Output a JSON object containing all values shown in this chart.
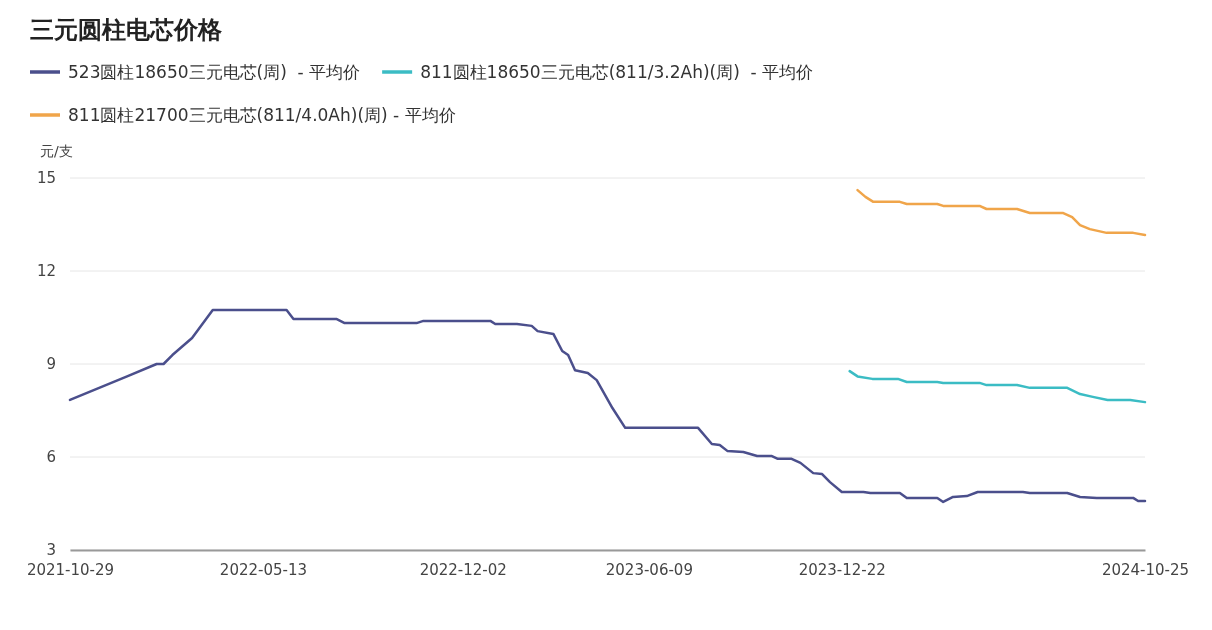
{
  "chart_data": {
    "type": "line",
    "title": "三元圆柱电芯价格",
    "ylabel": "元/支",
    "legend": "top left",
    "grid": "y",
    "marker": "none",
    "line_style": "solid",
    "xlim": [
      "2021-10-29",
      "2024-10-25"
    ],
    "xticks": [
      "2021-10-29",
      "2022-05-13",
      "2022-12-02",
      "2023-06-09",
      "2023-12-22",
      "2024-10-25"
    ],
    "ylim": [
      3,
      15
    ],
    "yticks": [
      3,
      6,
      9,
      12,
      15
    ],
    "series": [
      {
        "name": "523圆柱18650三元电芯(周)  - 平均价",
        "color": "#4b4f8c",
        "x": [
          "2021-10-29",
          "2021-12-26",
          "2022-01-25",
          "2022-02-01",
          "2022-02-10",
          "2022-03-02",
          "2022-03-23",
          "2022-06-06",
          "2022-06-13",
          "2022-07-27",
          "2022-08-04",
          "2022-10-16",
          "2022-10-23",
          "2022-12-30",
          "2023-01-04",
          "2023-01-26",
          "2023-02-10",
          "2023-02-16",
          "2023-03-04",
          "2023-03-13",
          "2023-03-19",
          "2023-03-26",
          "2023-04-08",
          "2023-04-17",
          "2023-05-03",
          "2023-05-16",
          "2023-07-29",
          "2023-08-12",
          "2023-08-20",
          "2023-08-28",
          "2023-09-13",
          "2023-09-27",
          "2023-10-12",
          "2023-10-18",
          "2023-11-01",
          "2023-11-10",
          "2023-11-23",
          "2023-12-02",
          "2023-12-10",
          "2023-12-22",
          "2024-01-13",
          "2024-01-20",
          "2024-02-19",
          "2024-02-26",
          "2024-03-28",
          "2024-04-03",
          "2024-04-13",
          "2024-04-27",
          "2024-05-08",
          "2024-06-23",
          "2024-06-30",
          "2024-08-07",
          "2024-08-20",
          "2024-09-06",
          "2024-10-13",
          "2024-10-18",
          "2024-10-25"
        ],
        "values": [
          7.84,
          8.6,
          9.0,
          9.0,
          9.29,
          9.84,
          10.74,
          10.74,
          10.45,
          10.45,
          10.32,
          10.32,
          10.39,
          10.39,
          10.29,
          10.29,
          10.23,
          10.06,
          9.97,
          9.42,
          9.29,
          8.8,
          8.71,
          8.48,
          7.58,
          6.94,
          6.94,
          6.42,
          6.39,
          6.19,
          6.16,
          6.03,
          6.03,
          5.94,
          5.94,
          5.81,
          5.48,
          5.45,
          5.19,
          4.87,
          4.87,
          4.84,
          4.84,
          4.68,
          4.68,
          4.55,
          4.71,
          4.74,
          4.87,
          4.87,
          4.84,
          4.84,
          4.71,
          4.68,
          4.68,
          4.58,
          4.58
        ]
      },
      {
        "name": "811圆柱18650三元电芯(811/3.2Ah)(周)  - 平均价",
        "color": "#3bbcc4",
        "x": [
          "2023-12-30",
          "2024-01-07",
          "2024-01-22",
          "2024-02-17",
          "2024-02-26",
          "2024-03-28",
          "2024-04-03",
          "2024-05-10",
          "2024-05-17",
          "2024-06-17",
          "2024-06-30",
          "2024-08-07",
          "2024-08-20",
          "2024-09-02",
          "2024-09-17",
          "2024-10-10",
          "2024-10-25"
        ],
        "values": [
          8.77,
          8.6,
          8.52,
          8.52,
          8.42,
          8.42,
          8.39,
          8.39,
          8.32,
          8.32,
          8.23,
          8.23,
          8.03,
          7.94,
          7.84,
          7.84,
          7.77
        ]
      },
      {
        "name": "811圆柱21700三元电芯(811/4.0Ah)(周) - 平均价",
        "color": "#f0a54a",
        "x": [
          "2024-01-07",
          "2024-01-15",
          "2024-01-23",
          "2024-02-19",
          "2024-02-26",
          "2024-03-28",
          "2024-04-03",
          "2024-05-10",
          "2024-05-17",
          "2024-06-17",
          "2024-06-30",
          "2024-08-03",
          "2024-08-12",
          "2024-08-20",
          "2024-08-30",
          "2024-09-16",
          "2024-10-13",
          "2024-10-25"
        ],
        "values": [
          14.61,
          14.39,
          14.23,
          14.23,
          14.16,
          14.16,
          14.1,
          14.1,
          14.0,
          14.0,
          13.87,
          13.87,
          13.74,
          13.48,
          13.35,
          13.23,
          13.23,
          13.16
        ]
      }
    ]
  }
}
